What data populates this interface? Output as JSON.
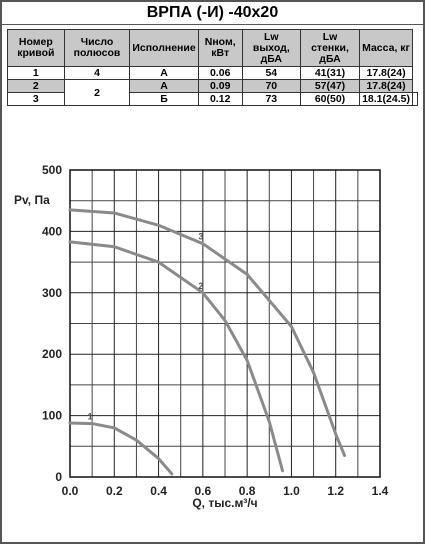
{
  "table": {
    "title": "ВРПА (-И) -40х20",
    "headers": [
      "Номер кривой",
      "Число полюсов",
      "Исполнение",
      "Nном, кВт",
      "Lw выход, дБА",
      "Lw стенки, дБА",
      "Масса, кг"
    ],
    "rows": [
      [
        "1",
        "4",
        "А",
        "0.06",
        "54",
        "41(31)",
        "17.8(24)"
      ],
      [
        "2",
        "2",
        "А",
        "0.09",
        "70",
        "57(47)",
        "17.8(24)"
      ],
      [
        "3",
        "Б",
        "0.12",
        "73",
        "60(50)",
        "18.1(24.5)"
      ]
    ]
  },
  "chart_data": {
    "type": "line",
    "xlabel": "Q, тыс.м³/ч",
    "ylabel": "Pv, Па",
    "xlim": [
      0,
      1.4
    ],
    "ylim": [
      0,
      500
    ],
    "xticks": [
      {
        "value": 0,
        "label": "0.0"
      },
      0.2,
      0.4,
      0.6,
      0.8,
      {
        "value": 1,
        "label": "1.0"
      },
      1.2,
      1.4
    ],
    "yticks": [
      0,
      100,
      200,
      300,
      400,
      500
    ],
    "grid": true,
    "series": [
      {
        "name": "1",
        "color": "#8a8a8a",
        "x": [
          0,
          0.1,
          0.2,
          0.3,
          0.4,
          0.46
        ],
        "values": [
          88,
          87,
          80,
          60,
          30,
          5
        ]
      },
      {
        "name": "2",
        "color": "#8a8a8a",
        "x": [
          0,
          0.2,
          0.4,
          0.6,
          0.7,
          0.8,
          0.9,
          0.96
        ],
        "values": [
          383,
          375,
          350,
          300,
          255,
          190,
          90,
          10
        ]
      },
      {
        "name": "3",
        "color": "#8a8a8a",
        "x": [
          0,
          0.2,
          0.4,
          0.6,
          0.8,
          1.0,
          1.1,
          1.2,
          1.24
        ],
        "values": [
          435,
          430,
          410,
          380,
          330,
          245,
          170,
          70,
          35
        ]
      }
    ]
  }
}
